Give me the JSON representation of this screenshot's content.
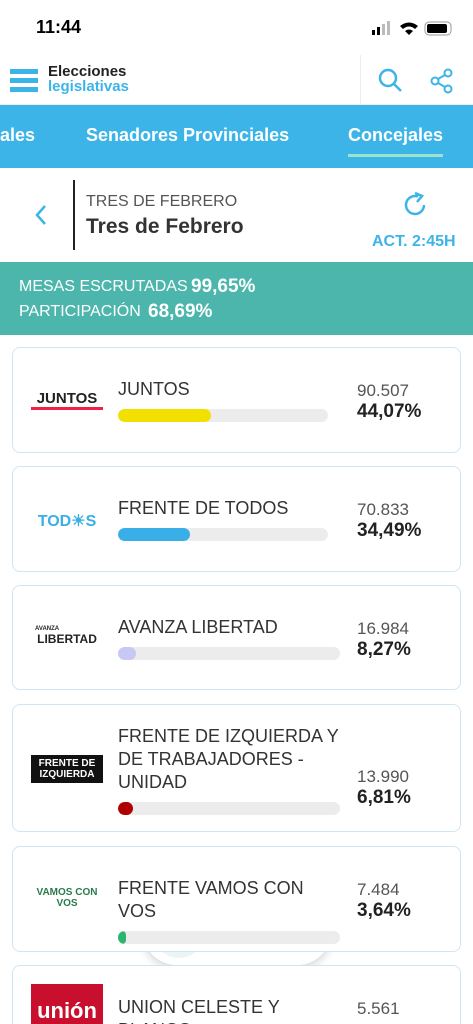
{
  "status_bar": {
    "time": "11:44"
  },
  "header": {
    "logo_line1": "Elecciones",
    "logo_line2": "legislativas"
  },
  "tabs": [
    "ales",
    "Senadores Provinciales",
    "Concejales"
  ],
  "location": {
    "district": "TRES DE FEBRERO",
    "name": "Tres de Febrero",
    "updated": "ACT. 2:45H"
  },
  "summary": {
    "mesas_label": "MESAS ESCRUTADAS",
    "mesas_value": "99,65%",
    "participacion_label": "PARTICIPACIÓN",
    "participacion_value": "68,69%"
  },
  "parties": [
    {
      "logo": "JUNTOS",
      "name": "JUNTOS",
      "votes": "90.507",
      "percent": "44,07%",
      "color": "#f2e100"
    },
    {
      "logo": "TOD☀S",
      "name": "FRENTE DE TODOS",
      "votes": "70.833",
      "percent": "34,49%",
      "color": "#3aaee6"
    },
    {
      "logo": "LIBERTAD",
      "logo_small": "AVANZA",
      "name": "AVANZA LIBERTAD",
      "votes": "16.984",
      "percent": "8,27%",
      "color": "#c8c8f4"
    },
    {
      "logo": "FRENTE DE IZQUIERDA",
      "name": "FRENTE DE IZQUIERDA Y DE TRABAJADORES - UNIDAD",
      "votes": "13.990",
      "percent": "6,81%",
      "color": "#b00000"
    },
    {
      "logo": "VAMOS CON VOS",
      "name": "FRENTE VAMOS CON VOS",
      "votes": "7.484",
      "percent": "3,64%",
      "color": "#2cb56f"
    },
    {
      "logo": "unión",
      "name": "UNION CELESTE Y BLANCO",
      "votes": "5.561"
    }
  ]
}
